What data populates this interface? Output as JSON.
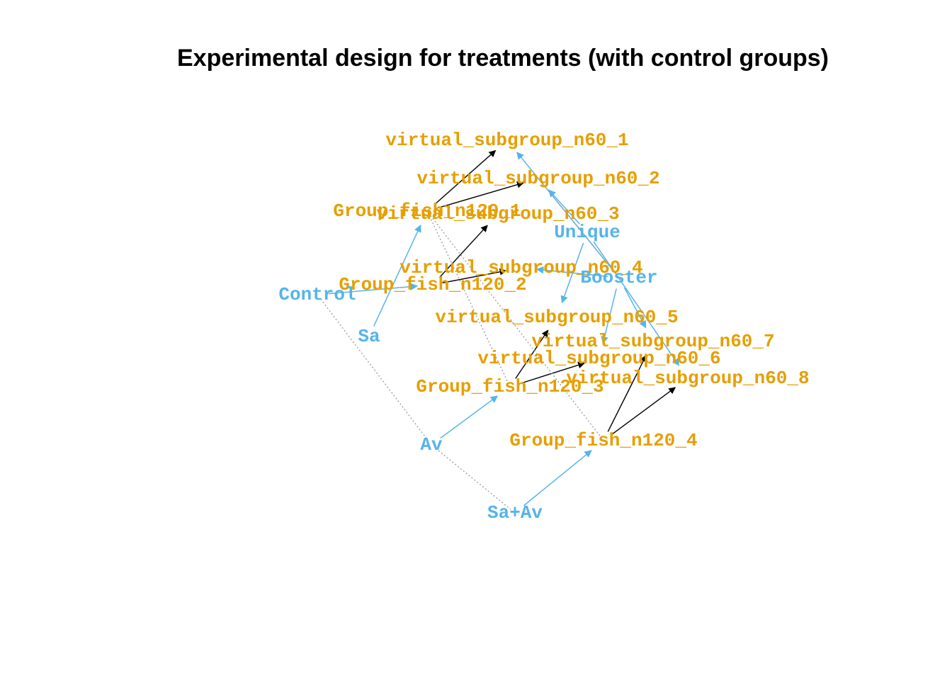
{
  "title": "Experimental design for treatments (with control groups)",
  "colors": {
    "treatment": "#56B4E9",
    "group": "#E69F00",
    "edge": "#000000",
    "dotted": "#999999"
  },
  "nodes": [
    {
      "id": "n1",
      "label": "virtual_subgroup_n60_1",
      "kind": "group"
    },
    {
      "id": "n2",
      "label": "virtual_subgroup_n60_2",
      "kind": "group"
    },
    {
      "id": "g1",
      "label": "Group_fish_n120_1",
      "kind": "group"
    },
    {
      "id": "n3",
      "label": "virtual_subgroup_n60_3",
      "kind": "group"
    },
    {
      "id": "unique",
      "label": "Unique",
      "kind": "treatment"
    },
    {
      "id": "n4",
      "label": "virtual_subgroup_n60_4",
      "kind": "group"
    },
    {
      "id": "booster",
      "label": "Booster",
      "kind": "treatment"
    },
    {
      "id": "g2",
      "label": "Group_fish_n120_2",
      "kind": "group"
    },
    {
      "id": "control",
      "label": "Control",
      "kind": "treatment"
    },
    {
      "id": "n5",
      "label": "virtual_subgroup_n60_5",
      "kind": "group"
    },
    {
      "id": "sa",
      "label": "Sa",
      "kind": "treatment"
    },
    {
      "id": "n7",
      "label": "virtual_subgroup_n60_7",
      "kind": "group"
    },
    {
      "id": "n6",
      "label": "virtual_subgroup_n60_6",
      "kind": "group"
    },
    {
      "id": "n8",
      "label": "virtual_subgroup_n60_8",
      "kind": "group"
    },
    {
      "id": "g3",
      "label": "Group_fish_n120_3",
      "kind": "group"
    },
    {
      "id": "g4",
      "label": "Group_fish_n120_4",
      "kind": "group"
    },
    {
      "id": "av",
      "label": "Av",
      "kind": "treatment"
    },
    {
      "id": "saav",
      "label": "Sa+Av",
      "kind": "treatment"
    }
  ],
  "edges": [
    {
      "from": "sa",
      "to": "g1",
      "style": "treatment"
    },
    {
      "from": "control",
      "to": "g2",
      "style": "treatment"
    },
    {
      "from": "av",
      "to": "g3",
      "style": "treatment"
    },
    {
      "from": "saav",
      "to": "g4",
      "style": "treatment"
    },
    {
      "from": "g1",
      "to": "n1",
      "style": "split"
    },
    {
      "from": "g1",
      "to": "n2",
      "style": "split"
    },
    {
      "from": "g2",
      "to": "n3",
      "style": "split"
    },
    {
      "from": "g2",
      "to": "n4",
      "style": "split"
    },
    {
      "from": "g3",
      "to": "n5",
      "style": "split"
    },
    {
      "from": "g3",
      "to": "n6",
      "style": "split"
    },
    {
      "from": "g4",
      "to": "n7",
      "style": "split"
    },
    {
      "from": "g4",
      "to": "n8",
      "style": "split"
    },
    {
      "from": "unique",
      "to": "n2",
      "style": "treatment"
    },
    {
      "from": "unique",
      "to": "n5",
      "style": "treatment"
    },
    {
      "from": "unique",
      "to": "n8",
      "style": "treatment"
    },
    {
      "from": "booster",
      "to": "n1",
      "style": "treatment"
    },
    {
      "from": "booster",
      "to": "n4",
      "style": "treatment"
    },
    {
      "from": "booster",
      "to": "n6",
      "style": "treatment"
    },
    {
      "from": "booster",
      "to": "n7",
      "style": "treatment"
    },
    {
      "from": "control",
      "to": "av",
      "style": "dotted"
    },
    {
      "from": "av",
      "to": "saav",
      "style": "dotted"
    },
    {
      "from": "g1",
      "to": "g3",
      "style": "dotted"
    },
    {
      "from": "g1",
      "to": "g4",
      "style": "dotted"
    },
    {
      "from": "n2",
      "to": "booster",
      "style": "dotted"
    }
  ]
}
